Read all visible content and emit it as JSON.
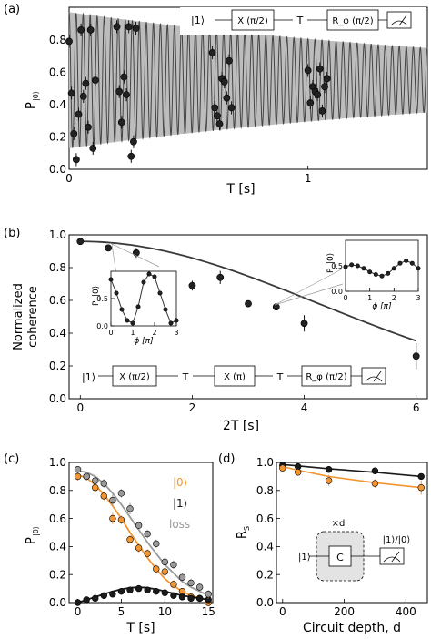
{
  "panels": {
    "a": {
      "label": "(a)",
      "ylabel": "P",
      "ylabel_sub": "|0⟩",
      "xlabel": "T [s]"
    },
    "b": {
      "label": "(b)",
      "ylabel_line1": "Normalized",
      "ylabel_line2": "coherence",
      "xlabel": "2T [s]"
    },
    "c": {
      "label": "(c)",
      "ylabel": "P",
      "ylabel_sub": "|0⟩",
      "xlabel": "T [s]"
    },
    "d": {
      "label": "(d)",
      "ylabel": "R",
      "ylabel_sub": "S",
      "xlabel": "Circuit depth, d"
    }
  },
  "circuits": {
    "a": [
      "|1⟩",
      "X (π/2)",
      "T",
      "R_φ (π/2)"
    ],
    "b": [
      "|1⟩",
      "X (π/2)",
      "T",
      "X (π)",
      "T",
      "R_φ (π/2)"
    ],
    "d": {
      "input": "|1⟩",
      "gate": "C",
      "repeat": "×d",
      "readout": "|1⟩/|0⟩"
    }
  },
  "colors": {
    "orange": "#f39632",
    "black": "#1a1a1a",
    "gray": "#9a9a9a",
    "envelope": "#bdbdbd"
  },
  "chart_data": [
    {
      "panel": "a",
      "type": "line",
      "xlabel": "T [s]",
      "ylabel": "P_|0⟩",
      "xlim": [
        0,
        1.5
      ],
      "ylim": [
        0,
        1.0
      ],
      "xticks": [
        0,
        1
      ],
      "yticks": [
        0.0,
        0.2,
        0.4,
        0.6,
        0.8
      ],
      "envelope": {
        "center": 0.55,
        "amp0": 0.42,
        "decay_time": 2.0
      },
      "oscillation_frequency_hz": 34,
      "points": [
        {
          "x": 0.0,
          "y": 0.79
        },
        {
          "x": 0.01,
          "y": 0.47
        },
        {
          "x": 0.02,
          "y": 0.22
        },
        {
          "x": 0.03,
          "y": 0.06
        },
        {
          "x": 0.04,
          "y": 0.34
        },
        {
          "x": 0.05,
          "y": 0.86
        },
        {
          "x": 0.06,
          "y": 0.45
        },
        {
          "x": 0.07,
          "y": 0.53
        },
        {
          "x": 0.08,
          "y": 0.26
        },
        {
          "x": 0.09,
          "y": 0.86
        },
        {
          "x": 0.1,
          "y": 0.13
        },
        {
          "x": 0.11,
          "y": 0.55
        },
        {
          "x": 0.2,
          "y": 0.88
        },
        {
          "x": 0.21,
          "y": 0.48
        },
        {
          "x": 0.22,
          "y": 0.29
        },
        {
          "x": 0.23,
          "y": 0.57
        },
        {
          "x": 0.24,
          "y": 0.46
        },
        {
          "x": 0.25,
          "y": 0.88
        },
        {
          "x": 0.26,
          "y": 0.08
        },
        {
          "x": 0.27,
          "y": 0.17
        },
        {
          "x": 0.28,
          "y": 0.87
        },
        {
          "x": 0.6,
          "y": 0.72
        },
        {
          "x": 0.61,
          "y": 0.38
        },
        {
          "x": 0.62,
          "y": 0.33
        },
        {
          "x": 0.63,
          "y": 0.28
        },
        {
          "x": 0.64,
          "y": 0.56
        },
        {
          "x": 0.65,
          "y": 0.54
        },
        {
          "x": 0.66,
          "y": 0.44
        },
        {
          "x": 0.67,
          "y": 0.67
        },
        {
          "x": 0.68,
          "y": 0.38
        },
        {
          "x": 1.0,
          "y": 0.61
        },
        {
          "x": 1.01,
          "y": 0.41
        },
        {
          "x": 1.02,
          "y": 0.51
        },
        {
          "x": 1.03,
          "y": 0.48
        },
        {
          "x": 1.04,
          "y": 0.46
        },
        {
          "x": 1.05,
          "y": 0.62
        },
        {
          "x": 1.06,
          "y": 0.36
        },
        {
          "x": 1.07,
          "y": 0.51
        },
        {
          "x": 1.08,
          "y": 0.56
        }
      ]
    },
    {
      "panel": "b",
      "type": "scatter",
      "xlabel": "2T [s]",
      "ylabel": "Normalized coherence",
      "xlim": [
        -0.2,
        6.2
      ],
      "ylim": [
        0.0,
        1.0
      ],
      "xticks": [
        0,
        2,
        4,
        6
      ],
      "yticks": [
        0.0,
        0.2,
        0.4,
        0.6,
        0.8,
        1.0
      ],
      "points": [
        {
          "x": 0,
          "y": 0.96,
          "err": 0.02
        },
        {
          "x": 0.5,
          "y": 0.92,
          "err": 0.02
        },
        {
          "x": 1,
          "y": 0.89,
          "err": 0.03
        },
        {
          "x": 2,
          "y": 0.69,
          "err": 0.03
        },
        {
          "x": 2.5,
          "y": 0.74,
          "err": 0.04
        },
        {
          "x": 3,
          "y": 0.58,
          "err": 0.02
        },
        {
          "x": 3.5,
          "y": 0.56,
          "err": 0.02
        },
        {
          "x": 4,
          "y": 0.46,
          "err": 0.05
        },
        {
          "x": 6,
          "y": 0.26,
          "err": 0.08
        }
      ],
      "fit": {
        "decay_time": 6.0,
        "exponent": 2.0,
        "amplitude": 0.96
      },
      "insets": [
        {
          "position": "left",
          "xlabel": "ϕ [π]",
          "ylabel": "P_|0⟩",
          "xlim": [
            0,
            3
          ],
          "ylim": [
            0,
            1.0
          ],
          "xticks": [
            0,
            1,
            2,
            3
          ],
          "yticks": [
            0.0,
            0.5
          ],
          "x": [
            0.0,
            0.25,
            0.5,
            0.75,
            1.0,
            1.25,
            1.5,
            1.75,
            2.0,
            2.25,
            2.5,
            2.75,
            3.0
          ],
          "y": [
            0.85,
            0.6,
            0.3,
            0.1,
            0.05,
            0.35,
            0.8,
            0.95,
            0.9,
            0.6,
            0.3,
            0.05,
            0.1
          ]
        },
        {
          "position": "right",
          "xlabel": "ϕ [π]",
          "ylabel": "P_|0⟩",
          "xlim": [
            0,
            3
          ],
          "ylim": [
            0,
            1.0
          ],
          "xticks": [
            0,
            1,
            2,
            3
          ],
          "yticks": [
            0.0,
            0.5
          ],
          "x": [
            0.0,
            0.25,
            0.5,
            0.75,
            1.0,
            1.25,
            1.5,
            1.75,
            2.0,
            2.25,
            2.5,
            2.75,
            3.0
          ],
          "y": [
            0.48,
            0.52,
            0.5,
            0.45,
            0.38,
            0.33,
            0.3,
            0.35,
            0.45,
            0.55,
            0.6,
            0.55,
            0.45
          ]
        }
      ]
    },
    {
      "panel": "c",
      "type": "line",
      "xlabel": "T [s]",
      "ylabel": "P_|0⟩",
      "xlim": [
        -1,
        15.5
      ],
      "ylim": [
        0,
        1.0
      ],
      "xticks": [
        0,
        5,
        10,
        15
      ],
      "yticks": [
        0.0,
        0.2,
        0.4,
        0.6,
        0.8,
        1.0
      ],
      "series": [
        {
          "name": "|0⟩",
          "color_key": "orange",
          "x": [
            0,
            1,
            2,
            3,
            4,
            5,
            6,
            7,
            8,
            9,
            10,
            11,
            12,
            13,
            14,
            15
          ],
          "y": [
            0.9,
            0.9,
            0.82,
            0.76,
            0.6,
            0.59,
            0.45,
            0.39,
            0.35,
            0.24,
            0.22,
            0.13,
            0.08,
            0.04,
            0.03,
            0.0
          ],
          "err": [
            0.03,
            0.03,
            0.03,
            0.03,
            0.04,
            0.03,
            0.03,
            0.03,
            0.03,
            0.03,
            0.03,
            0.03,
            0.02,
            0.02,
            0.02,
            0.02
          ],
          "fit_y": [
            0.91,
            0.89,
            0.84,
            0.77,
            0.69,
            0.6,
            0.5,
            0.41,
            0.32,
            0.24,
            0.17,
            0.12,
            0.08,
            0.05,
            0.03,
            0.02
          ]
        },
        {
          "name": "|1⟩",
          "color_key": "black",
          "x": [
            0,
            1,
            2,
            3,
            4,
            5,
            6,
            7,
            8,
            9,
            10,
            11,
            12,
            13,
            14,
            15
          ],
          "y": [
            0.0,
            0.02,
            0.03,
            0.05,
            0.06,
            0.08,
            0.09,
            0.1,
            0.09,
            0.08,
            0.07,
            0.05,
            0.04,
            0.03,
            0.03,
            0.02
          ],
          "err": [
            0.01,
            0.01,
            0.01,
            0.01,
            0.01,
            0.01,
            0.01,
            0.01,
            0.01,
            0.01,
            0.01,
            0.01,
            0.01,
            0.01,
            0.01,
            0.01
          ],
          "fit_y": [
            0.0,
            0.02,
            0.04,
            0.06,
            0.08,
            0.095,
            0.105,
            0.11,
            0.105,
            0.095,
            0.08,
            0.065,
            0.05,
            0.04,
            0.03,
            0.02
          ]
        },
        {
          "name": "loss",
          "color_key": "gray",
          "x": [
            0,
            1,
            2,
            3,
            4,
            5,
            6,
            7,
            8,
            9,
            10,
            11,
            12,
            13,
            14,
            15
          ],
          "y": [
            0.95,
            0.9,
            0.87,
            0.85,
            0.73,
            0.78,
            0.67,
            0.55,
            0.49,
            0.42,
            0.29,
            0.27,
            0.18,
            0.14,
            0.11,
            0.06
          ],
          "err": [
            0.02,
            0.03,
            0.03,
            0.03,
            0.04,
            0.03,
            0.04,
            0.03,
            0.03,
            0.03,
            0.03,
            0.03,
            0.03,
            0.03,
            0.03,
            0.03
          ],
          "fit_y": [
            0.94,
            0.93,
            0.9,
            0.85,
            0.78,
            0.7,
            0.61,
            0.52,
            0.43,
            0.35,
            0.27,
            0.21,
            0.15,
            0.11,
            0.08,
            0.05
          ]
        }
      ]
    },
    {
      "panel": "d",
      "type": "line",
      "xlabel": "Circuit depth, d",
      "ylabel": "R_S",
      "xlim": [
        -20,
        470
      ],
      "ylim": [
        0.0,
        1.0
      ],
      "xticks": [
        0,
        200,
        400
      ],
      "yticks": [
        0.0,
        0.2,
        0.4,
        0.6,
        0.8,
        1.0
      ],
      "series": [
        {
          "name": "|1⟩",
          "color_key": "black",
          "x": [
            0,
            50,
            150,
            300,
            450
          ],
          "y": [
            0.98,
            0.97,
            0.95,
            0.94,
            0.9
          ],
          "err": [
            0.01,
            0.01,
            0.01,
            0.01,
            0.02
          ],
          "fit": [
            0.985,
            0.975,
            0.955,
            0.93,
            0.9
          ]
        },
        {
          "name": "|0⟩",
          "color_key": "orange",
          "x": [
            0,
            50,
            150,
            300,
            450
          ],
          "y": [
            0.96,
            0.93,
            0.87,
            0.85,
            0.82
          ],
          "err": [
            0.02,
            0.02,
            0.04,
            0.03,
            0.05
          ],
          "fit": [
            0.97,
            0.945,
            0.9,
            0.855,
            0.82
          ]
        }
      ]
    }
  ]
}
